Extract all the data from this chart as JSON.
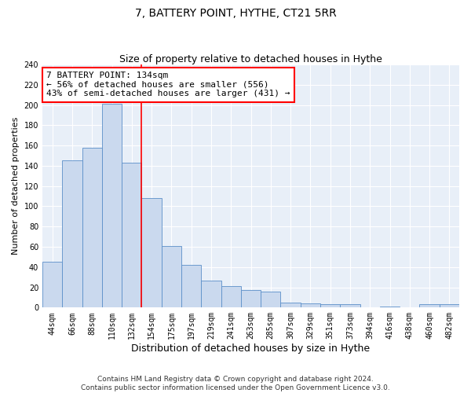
{
  "title": "7, BATTERY POINT, HYTHE, CT21 5RR",
  "subtitle": "Size of property relative to detached houses in Hythe",
  "xlabel": "Distribution of detached houses by size in Hythe",
  "ylabel": "Number of detached properties",
  "bar_labels": [
    "44sqm",
    "66sqm",
    "88sqm",
    "110sqm",
    "132sqm",
    "154sqm",
    "175sqm",
    "197sqm",
    "219sqm",
    "241sqm",
    "263sqm",
    "285sqm",
    "307sqm",
    "329sqm",
    "351sqm",
    "373sqm",
    "394sqm",
    "416sqm",
    "438sqm",
    "460sqm",
    "482sqm"
  ],
  "bar_values": [
    45,
    145,
    158,
    201,
    143,
    108,
    61,
    42,
    27,
    21,
    17,
    16,
    5,
    4,
    3,
    3,
    0,
    1,
    0,
    3,
    3
  ],
  "bar_color": "#cad9ee",
  "bar_edge_color": "#5b8fc9",
  "red_line_index": 4,
  "annotation_text": "7 BATTERY POINT: 134sqm\n← 56% of detached houses are smaller (556)\n43% of semi-detached houses are larger (431) →",
  "annotation_box_color": "white",
  "annotation_box_edge": "red",
  "ylim": [
    0,
    240
  ],
  "yticks": [
    0,
    20,
    40,
    60,
    80,
    100,
    120,
    140,
    160,
    180,
    200,
    220,
    240
  ],
  "background_color": "#e8eff8",
  "footer_line1": "Contains HM Land Registry data © Crown copyright and database right 2024.",
  "footer_line2": "Contains public sector information licensed under the Open Government Licence v3.0.",
  "title_fontsize": 10,
  "subtitle_fontsize": 9,
  "xlabel_fontsize": 9,
  "ylabel_fontsize": 8,
  "tick_fontsize": 7,
  "annotation_fontsize": 8,
  "footer_fontsize": 6.5
}
